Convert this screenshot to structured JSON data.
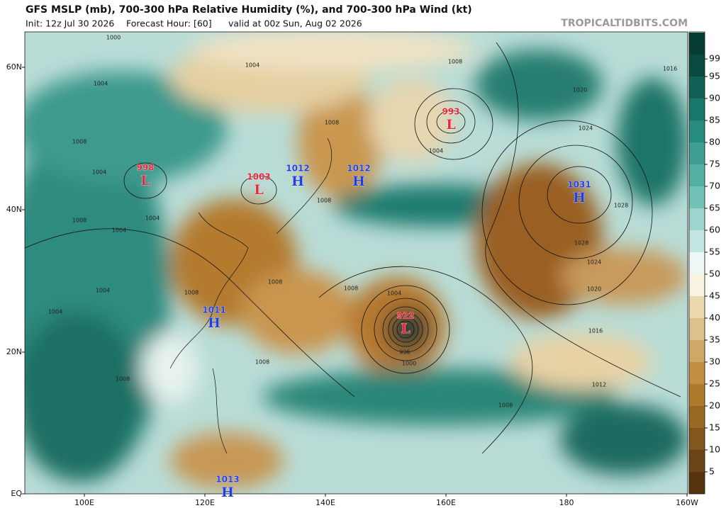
{
  "header": {
    "title": "GFS MSLP (mb), 700-300 hPa Relative Humidity (%), and 700-300 hPa Wind (kt)",
    "init": "Init: 12z Jul 30 2026",
    "forecast": "Forecast Hour: [60]",
    "valid": "valid at 00z Sun, Aug 02 2026",
    "credit": "TROPICALTIDBITS.COM"
  },
  "map": {
    "lat_labels": [
      "60N",
      "40N",
      "20N",
      "EQ"
    ],
    "lon_labels": [
      "100E",
      "120E",
      "140E",
      "160E",
      "180",
      "160W"
    ],
    "centers": [
      {
        "type": "L",
        "value": "998"
      },
      {
        "type": "L",
        "value": "1003"
      },
      {
        "type": "H",
        "value": "1012"
      },
      {
        "type": "H",
        "value": "1012"
      },
      {
        "type": "L",
        "value": "993"
      },
      {
        "type": "H",
        "value": "1031"
      },
      {
        "type": "H",
        "value": "1011"
      },
      {
        "type": "L",
        "value": "922"
      },
      {
        "type": "H",
        "value": "1013"
      }
    ],
    "isobar_labels": [
      "1000",
      "1004",
      "1008",
      "1004",
      "1008",
      "1004",
      "1004",
      "1004",
      "1004",
      "1008",
      "1008",
      "1008",
      "1004",
      "996",
      "1000",
      "1008",
      "1008",
      "1008",
      "1012",
      "1016",
      "1020",
      "1024",
      "1028",
      "1028",
      "1024",
      "1020",
      "1016",
      "1004",
      "1008",
      "1008",
      "1008",
      "1004"
    ]
  },
  "colorbar": {
    "ticks": [
      99,
      95,
      90,
      85,
      80,
      75,
      70,
      65,
      60,
      55,
      50,
      45,
      40,
      35,
      30,
      25,
      20,
      15,
      10,
      5
    ]
  }
}
